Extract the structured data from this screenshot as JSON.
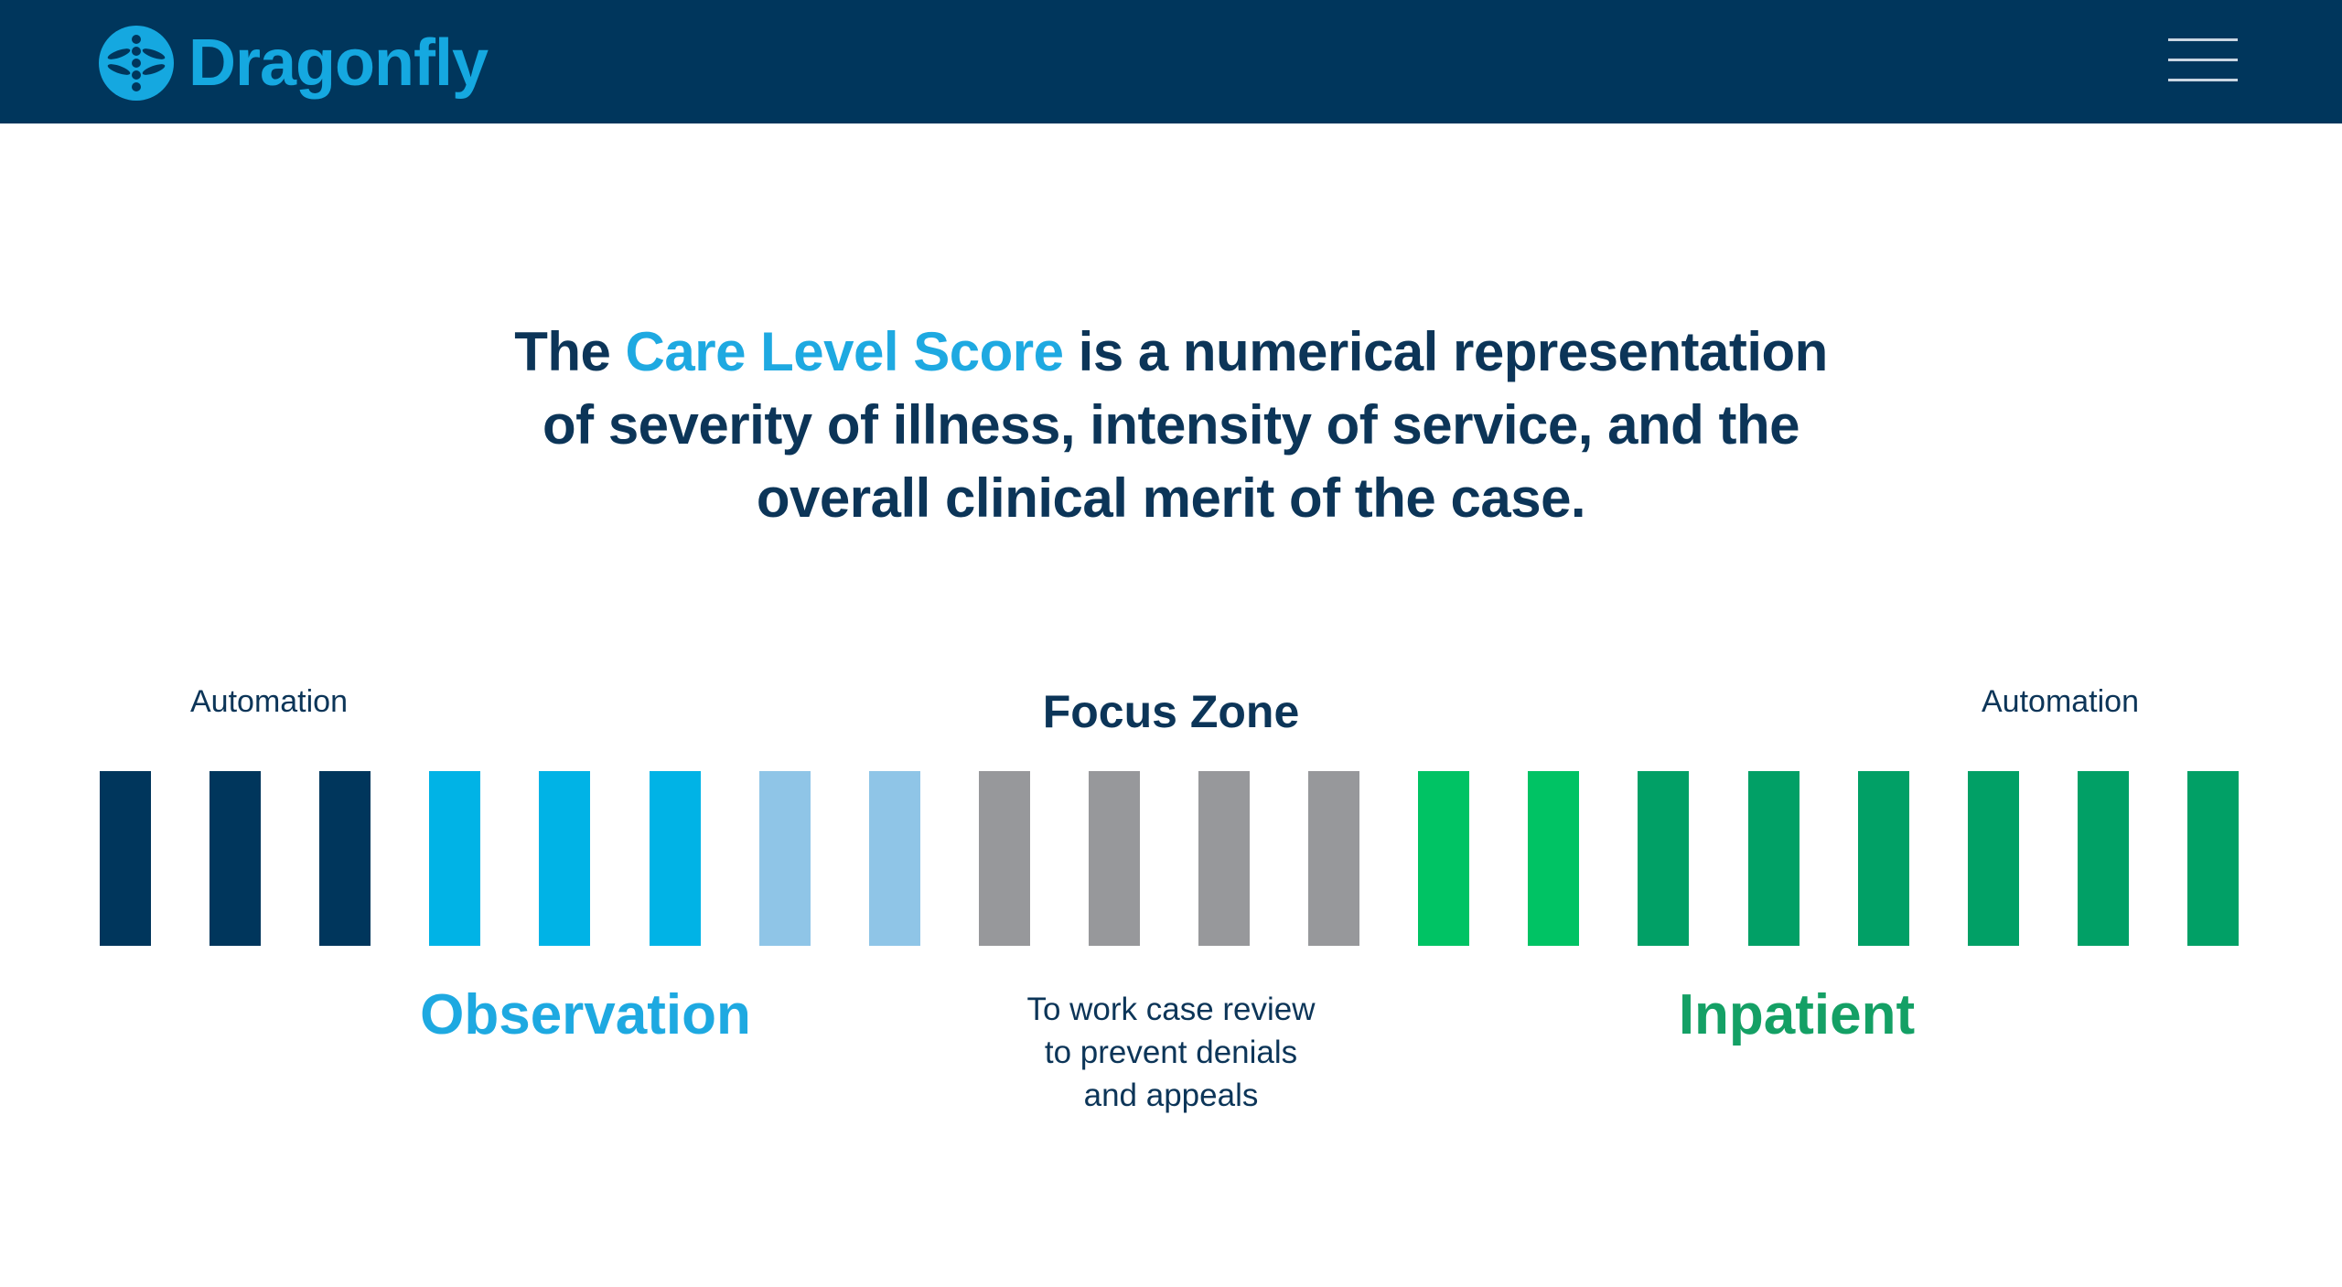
{
  "header": {
    "brand_name": "Dragonfly",
    "logo_icon": "dragonfly-logo-icon",
    "menu_icon": "hamburger-menu-icon",
    "background_color": "#00365c",
    "brand_color": "#15a8e0"
  },
  "headline": {
    "prefix": "The ",
    "highlight": "Care Level Score",
    "line1_suffix": " is a numerical representation",
    "line2": "of severity of illness, intensity of service, and the",
    "line3": "overall clinical merit of the case.",
    "text_color": "#0c3558",
    "highlight_color": "#1ea9e1"
  },
  "scale": {
    "automation_left": "Automation",
    "automation_right": "Automation",
    "focus_zone_title": "Focus Zone",
    "observation_label": "Observation",
    "inpatient_label": "Inpatient",
    "focus_zone_description": [
      "To work case review",
      "to prevent denials",
      "and appeals"
    ],
    "bar_colors": [
      "#00365c",
      "#00365c",
      "#00365c",
      "#00b3e6",
      "#00b3e6",
      "#00b3e6",
      "#8fc5e7",
      "#8fc5e7",
      "#97989b",
      "#97989b",
      "#97989b",
      "#97989b",
      "#00c364",
      "#00c364",
      "#01a066",
      "#01a066",
      "#01a066",
      "#01a066",
      "#01a066",
      "#01a066"
    ],
    "observation_color": "#1ea9e1",
    "inpatient_color": "#14a065"
  }
}
